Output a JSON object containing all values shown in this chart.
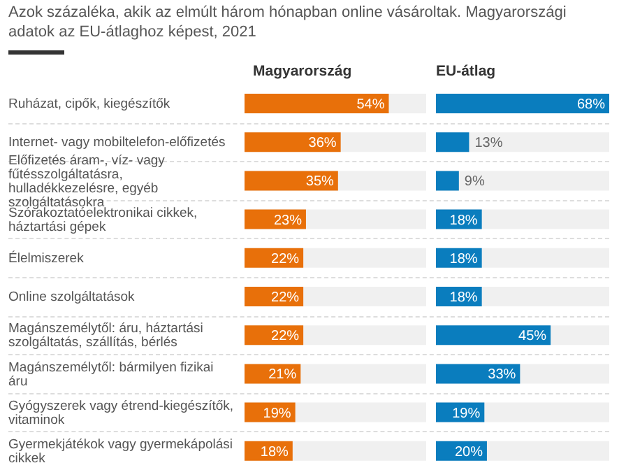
{
  "chart_data": [
    {
      "type": "bar",
      "orientation": "horizontal",
      "title": "Azok százaléka, akik az elmúlt három hónapban online vásároltak. Magyarországi adatok az EU-átlaghoz képest, 2021",
      "tick_labels": "y",
      "categories": [
        "Ruházat, cipők, kiegészítők",
        "Internet- vagy mobiltelefon-előfizetés",
        "Előfizetés áram-, víz- vagy fűtésszolgáltatásra, hulladékkezelésre, egyéb szolgáltatásokra",
        "Szórakoztatóelektronikai cikkek, háztartási gépek",
        "Élelmiszerek",
        "Online szolgáltatások",
        "Magánszemélytől: áru, háztartási szolgáltatás, szállítás, bérlés",
        "Magánszemélytől: bármilyen fizikai áru",
        "Gyógyszerek vagy étrend-kiegészítők, vitaminok",
        "Gyermekjátékok vagy gyermekápolási cikkek"
      ],
      "series": [
        {
          "name": "Magyarország",
          "color": "#e8700a",
          "values": [
            54,
            36,
            35,
            23,
            22,
            22,
            22,
            21,
            19,
            18
          ],
          "value_labels": [
            "54%",
            "36%",
            "35%",
            "23%",
            "22%",
            "22%",
            "22%",
            "21%",
            "19%",
            "18%"
          ]
        }
      ]
    },
    {
      "type": "bar",
      "orientation": "horizontal",
      "tick_labels": false,
      "series": [
        {
          "name": "EU-átlag",
          "color": "#0a7dbe",
          "values": [
            68,
            13,
            9,
            18,
            18,
            18,
            45,
            33,
            19,
            20
          ],
          "value_labels": [
            "68%",
            "13%",
            "9%",
            "18%",
            "18%",
            "18%",
            "45%",
            "33%",
            "19%",
            "20%"
          ]
        }
      ]
    }
  ]
}
